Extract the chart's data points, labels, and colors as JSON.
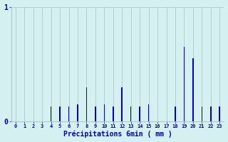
{
  "hours": [
    0,
    1,
    2,
    3,
    4,
    5,
    6,
    7,
    8,
    9,
    10,
    11,
    12,
    13,
    14,
    15,
    16,
    17,
    18,
    19,
    20,
    21,
    22,
    23
  ],
  "values": [
    0,
    0,
    0,
    0,
    0.13,
    0.13,
    0.13,
    0.15,
    0.3,
    0.13,
    0.15,
    0.13,
    0.3,
    0.13,
    0.13,
    0.15,
    0,
    0,
    0.13,
    0.65,
    0.55,
    0.13,
    0.13,
    0.13
  ],
  "bar_color": "#0000cc",
  "bg_color": "#d5f0f0",
  "grid_color": "#b0c8c8",
  "text_color": "#0000bb",
  "xlabel": "Précipitations 6min ( mm )",
  "ylim": [
    0,
    1.0
  ],
  "bar_width": 0.12,
  "figwidth": 3.2,
  "figheight": 2.0,
  "dpi": 100
}
